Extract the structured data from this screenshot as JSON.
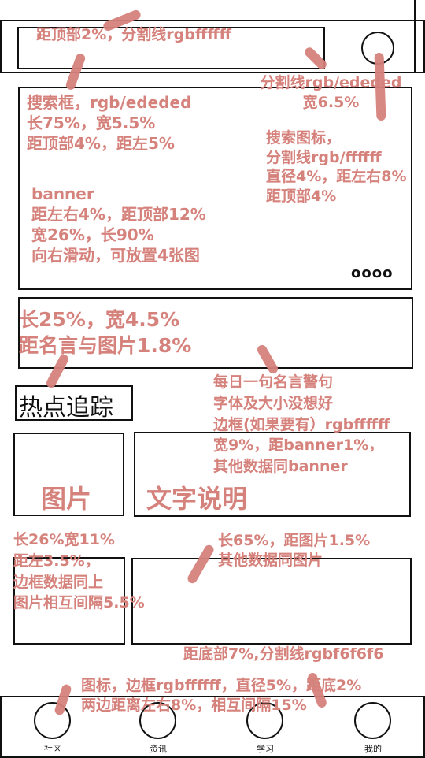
{
  "sections": {
    "hot_title": "热点追踪",
    "image_label": "图片",
    "text_label": "文字说明"
  },
  "annotations": {
    "top_divider": "距顶部2%，分割线rgbffffff",
    "divider_right": "分割线rgb/ededed\n宽6.5%",
    "search_box": "搜索框，rgb/ededed\n长75%，宽5.5%\n距顶部4%，距左5%",
    "search_icon": "搜索图标，\n分割线rgb/ffffff\n直径4%，距左右8%\n距顶部4%",
    "banner": "banner\n距左右4%，距顶部12%\n宽26%，长90%\n向右滑动，可放置4张图",
    "quote": "长25%，宽4.5%\n距名言与图片1.8%",
    "quote_note": "每日一句名言警句\n字体及大小没想好\n边框(如果要有）rgbffffff\n宽9%，距banner1%，\n其他数据同banner",
    "image_size": "长26%宽11%\n距左3.5%，\n边框数据同上\n图片相互间隔5.5%",
    "text_size": "长65%，距图片1.5%\n其他数据同图片",
    "bottom_divider": "距底部7%,分割线rgbf6f6f6",
    "nav_icons": "图标，边框rgbffffff，直径5%，距底2%\n两边距离左右8%，相互间隔15%"
  },
  "banner": {
    "dots": "oooo"
  },
  "bottom_nav": {
    "items": [
      {
        "label": "社区"
      },
      {
        "label": "资讯"
      },
      {
        "label": "学习"
      },
      {
        "label": "我的"
      }
    ]
  }
}
